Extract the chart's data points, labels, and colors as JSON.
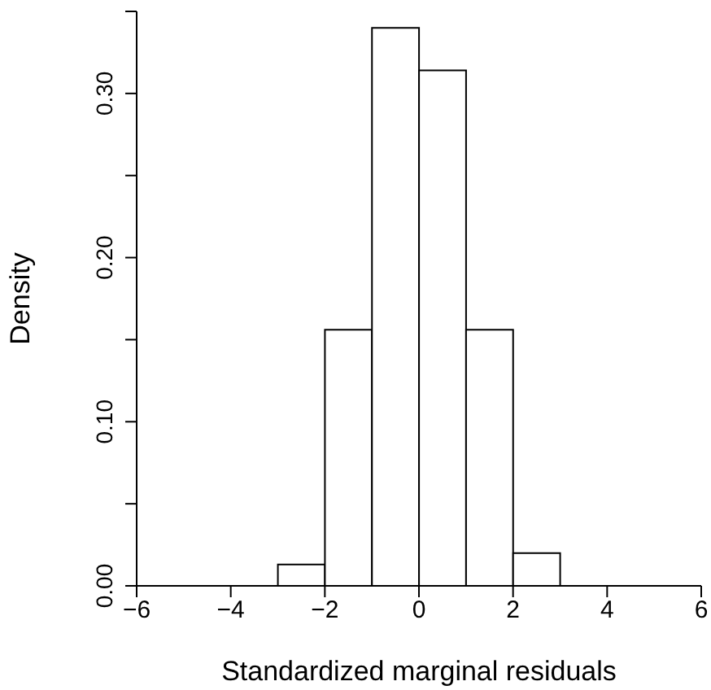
{
  "chart_data": {
    "type": "histogram",
    "xlabel": "Standardized marginal residuals",
    "ylabel": "Density",
    "bins": [
      -6,
      -5,
      -4,
      -3,
      -2,
      -1,
      0,
      1,
      2,
      3,
      4,
      5,
      6
    ],
    "values": [
      0,
      0,
      0,
      0.013,
      0.156,
      0.34,
      0.314,
      0.156,
      0.02,
      0,
      0,
      0
    ],
    "color": "#000000",
    "xlim": [
      -6,
      6
    ],
    "xticks": [
      {
        "value": -6,
        "label": "−6"
      },
      {
        "value": -4,
        "label": "−4"
      },
      {
        "value": -2,
        "label": "−2"
      },
      0,
      2,
      4,
      6
    ],
    "ylim": [
      0,
      0.35
    ],
    "yticks": [
      {
        "value": 0,
        "label": "0.00"
      },
      {
        "value": 0.05,
        "label": null
      },
      {
        "value": 0.1,
        "label": "0.10"
      },
      {
        "value": 0.15,
        "label": null
      },
      {
        "value": 0.2,
        "label": "0.20"
      },
      {
        "value": 0.25,
        "label": null
      },
      {
        "value": 0.3,
        "label": "0.30"
      },
      {
        "value": 0.35,
        "label": null
      }
    ],
    "grid": false
  }
}
